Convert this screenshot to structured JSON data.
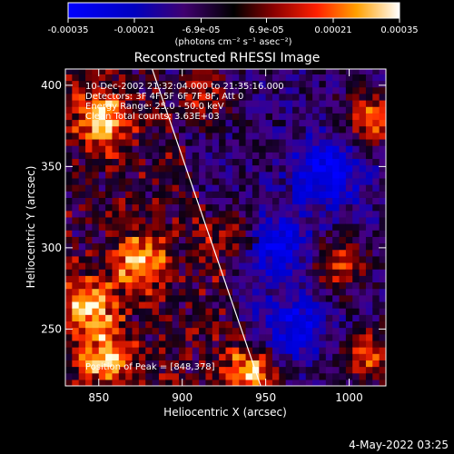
{
  "chart_data": {
    "type": "heatmap",
    "title": "Reconstructed RHESSI Image",
    "xlabel": "Heliocentric X (arcsec)",
    "ylabel": "Heliocentric Y (arcsec)",
    "xlim": [
      830,
      1022
    ],
    "ylim": [
      215,
      410
    ],
    "x_ticks": [
      850,
      900,
      950,
      1000
    ],
    "y_ticks": [
      250,
      300,
      350,
      400
    ],
    "colorbar": {
      "label": "(photons cm⁻² s⁻¹ asec⁻²)",
      "range": [
        -0.00035,
        0.00035
      ],
      "ticks": [
        "-0.00035",
        "-0.00021",
        "-6.9e-05",
        "6.9e-05",
        "0.00021",
        "0.00035"
      ],
      "tick_values": [
        -0.00035,
        -0.00021,
        -6.9e-05,
        6.9e-05,
        0.00021,
        0.00035
      ]
    },
    "annotations": [
      "10-Dec-2002 21:32:04.000 to 21:35:16.000",
      "Detectors: 3F 4F 5F 6F 7F 8F, Att 0",
      "Energy Range: 25.0 - 50.0 keV",
      "Clean    Total counts: 3.63E+03",
      "Position of Peak = [848,378]"
    ],
    "peak": [
      848,
      378
    ],
    "limb_line": [
      [
        882,
        410
      ],
      [
        947,
        215
      ]
    ],
    "hot_regions": [
      {
        "x": 850,
        "y": 378,
        "value": 0.00035
      },
      {
        "x": 872,
        "y": 290,
        "value": 0.0003
      },
      {
        "x": 842,
        "y": 262,
        "value": 0.00032
      },
      {
        "x": 852,
        "y": 230,
        "value": 0.0003
      },
      {
        "x": 940,
        "y": 222,
        "value": 0.00031
      },
      {
        "x": 1012,
        "y": 378,
        "value": 0.00028
      },
      {
        "x": 1010,
        "y": 232,
        "value": 0.00026
      },
      {
        "x": 992,
        "y": 288,
        "value": 0.00024
      },
      {
        "x": 928,
        "y": 305,
        "value": 0.0002
      },
      {
        "x": 910,
        "y": 392,
        "value": 0.0002
      }
    ],
    "cold_regions": [
      {
        "x": 985,
        "y": 345,
        "value": -0.00025
      },
      {
        "x": 955,
        "y": 300,
        "value": -0.00021
      },
      {
        "x": 965,
        "y": 250,
        "value": -0.0002
      }
    ]
  },
  "footer": {
    "date": "4-May-2022 03:25"
  }
}
